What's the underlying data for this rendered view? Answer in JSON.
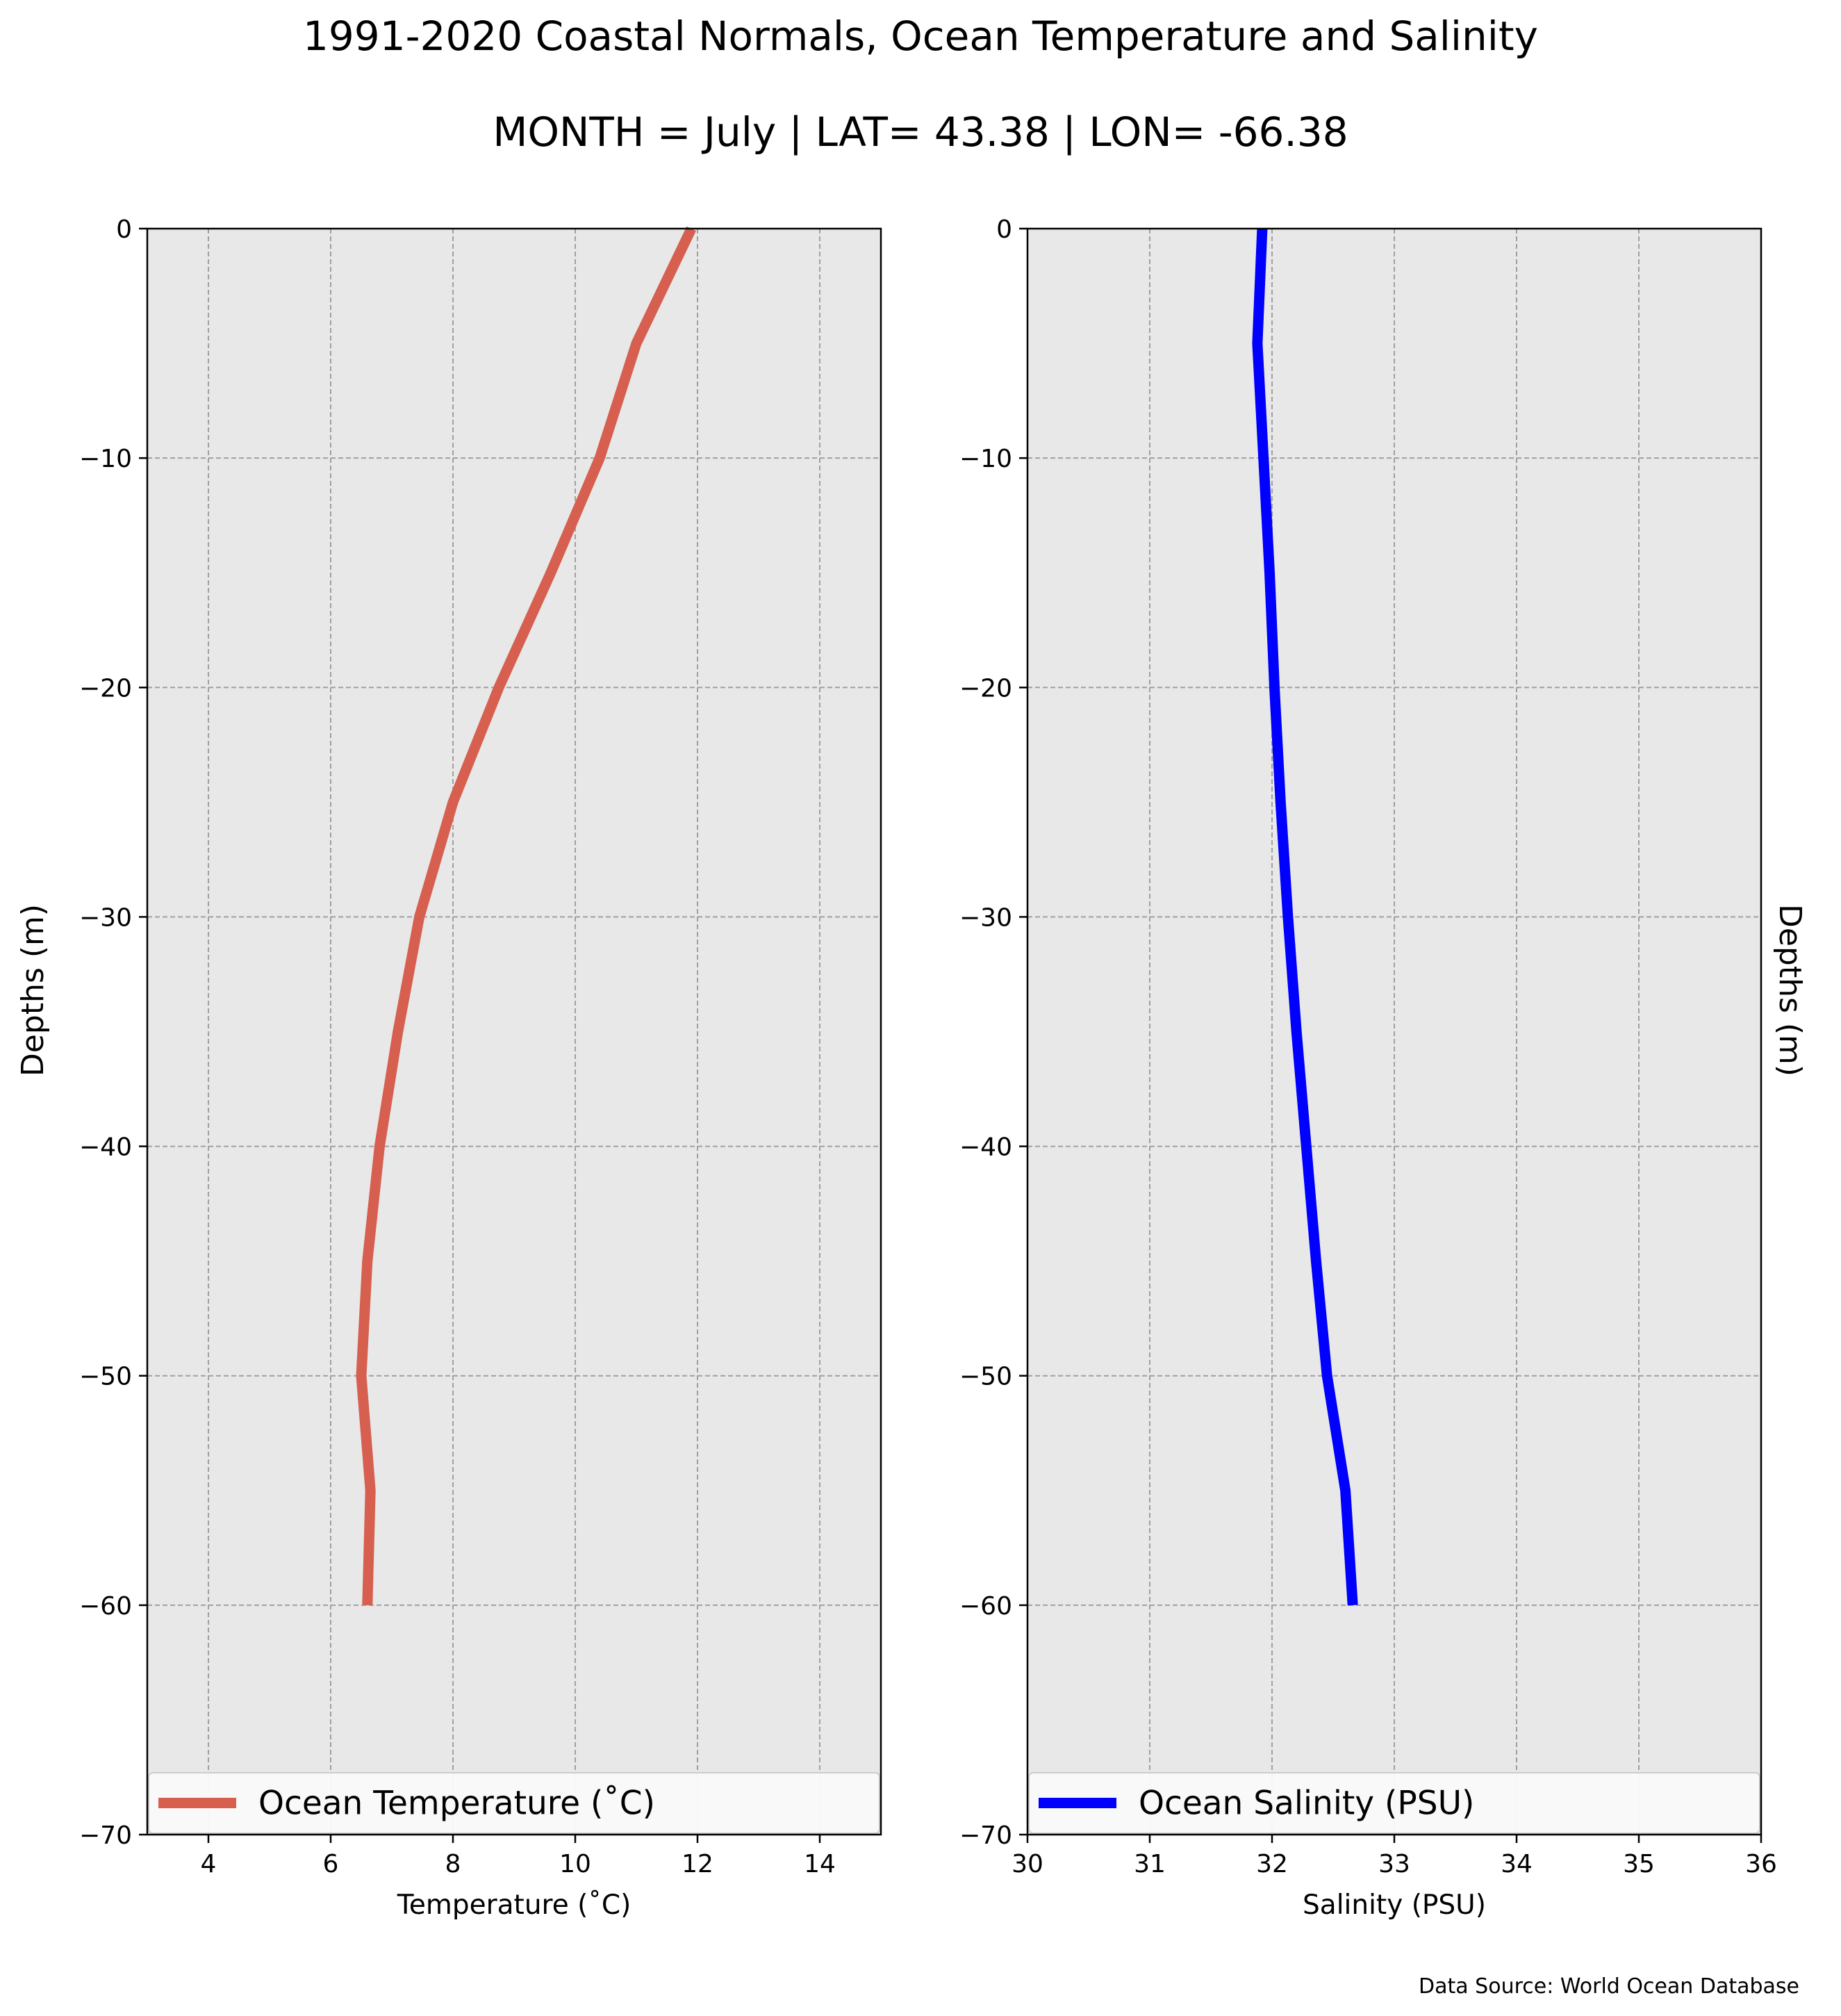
{
  "figure": {
    "title": "1991-2020 Coastal Normals, Ocean Temperature and Salinity",
    "subtitle": "MONTH = July | LAT= 43.38 | LON= -66.38",
    "source": "Data Source: World Ocean Database"
  },
  "chart_data": [
    {
      "type": "line",
      "panel": "left",
      "xlabel": "Temperature ($^\\circ$C)",
      "xlabel_display": "Temperature (˚C)",
      "ylabel": "Depths (m)",
      "xlim": [
        3,
        15
      ],
      "ylim": [
        -70,
        0
      ],
      "xticks": [
        4,
        6,
        8,
        10,
        12,
        14
      ],
      "yticks": [
        0,
        -10,
        -20,
        -30,
        -40,
        -50,
        -60,
        -70
      ],
      "ytick_labels": [
        "0",
        "−10",
        "−20",
        "−30",
        "−40",
        "−50",
        "−60",
        "−70"
      ],
      "grid": true,
      "legend_placement": "lower center",
      "series": [
        {
          "name": "Ocean Temperature (˚C)",
          "color": "#d65f4f",
          "x": [
            11.9,
            11.0,
            10.4,
            9.6,
            8.75,
            8.0,
            7.45,
            7.1,
            6.8,
            6.6,
            6.5,
            6.65,
            6.6
          ],
          "y": [
            0,
            -5,
            -10,
            -15,
            -20,
            -25,
            -30,
            -35,
            -40,
            -45,
            -50,
            -55,
            -60
          ]
        }
      ]
    },
    {
      "type": "line",
      "panel": "right",
      "xlabel": "Salinity (PSU)",
      "ylabel": "Depths (m)",
      "xlim": [
        30,
        36
      ],
      "ylim": [
        -70,
        0
      ],
      "xticks": [
        30,
        31,
        32,
        33,
        34,
        35,
        36
      ],
      "yticks": [
        0,
        -10,
        -20,
        -30,
        -40,
        -50,
        -60,
        -70
      ],
      "ytick_labels": [
        "0",
        "−10",
        "−20",
        "−30",
        "−40",
        "−50",
        "−60",
        "−70"
      ],
      "grid": true,
      "legend_placement": "lower center",
      "series": [
        {
          "name": "Ocean Salinity (PSU)",
          "color": "#0000ff",
          "x": [
            31.92,
            31.88,
            31.93,
            31.98,
            32.02,
            32.07,
            32.13,
            32.2,
            32.28,
            32.36,
            32.45,
            32.6,
            32.66
          ],
          "y": [
            0,
            -5,
            -10,
            -15,
            -20,
            -25,
            -30,
            -35,
            -40,
            -45,
            -50,
            -55,
            -60
          ]
        }
      ]
    }
  ]
}
